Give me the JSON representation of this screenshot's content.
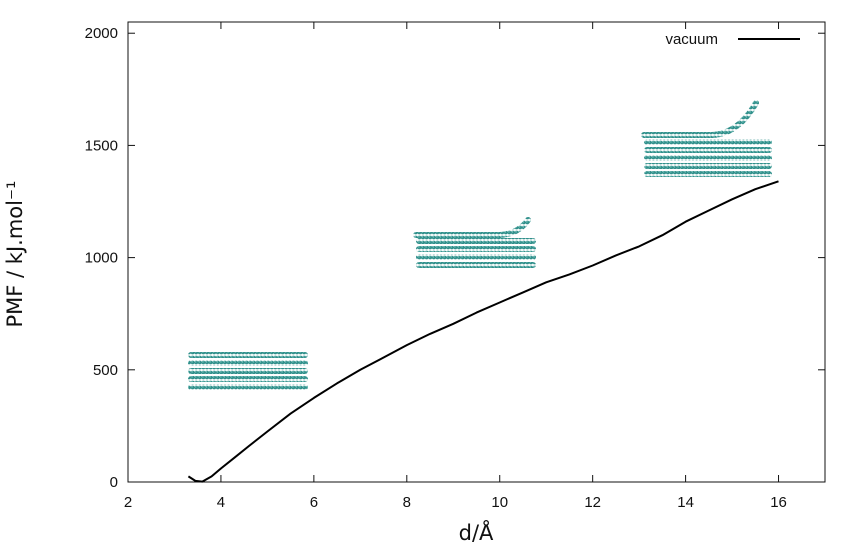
{
  "chart_data": {
    "type": "line",
    "title": "",
    "xlabel": "d/Å",
    "ylabel": "PMF / kJ.mol⁻¹",
    "xlim": [
      2,
      17
    ],
    "ylim": [
      0,
      2050
    ],
    "xticks": [
      2,
      4,
      6,
      8,
      10,
      12,
      14,
      16
    ],
    "yticks": [
      0,
      500,
      1000,
      1500,
      2000
    ],
    "grid": false,
    "legend_position": "top-right",
    "series": [
      {
        "name": "vacuum",
        "color": "#000000",
        "x": [
          3.3,
          3.45,
          3.6,
          3.8,
          4.0,
          4.3,
          4.6,
          5.0,
          5.5,
          6.0,
          6.5,
          7.0,
          7.5,
          8.0,
          8.5,
          9.0,
          9.5,
          10.0,
          10.5,
          11.0,
          11.5,
          12.0,
          12.5,
          13.0,
          13.5,
          14.0,
          14.5,
          15.0,
          15.5,
          16.0
        ],
        "y": [
          25,
          5,
          2,
          25,
          60,
          110,
          160,
          225,
          305,
          375,
          440,
          500,
          555,
          610,
          660,
          705,
          755,
          800,
          845,
          890,
          925,
          965,
          1010,
          1050,
          1100,
          1160,
          1210,
          1260,
          1305,
          1340
        ]
      }
    ],
    "insets": [
      {
        "icon": "stacked-layers-flat",
        "color": "#3a9e98"
      },
      {
        "icon": "stacked-layers-top-layer-slightly-peeled",
        "color": "#3a9e98"
      },
      {
        "icon": "stacked-layers-top-layer-strongly-peeled",
        "color": "#3a9e98"
      }
    ]
  }
}
